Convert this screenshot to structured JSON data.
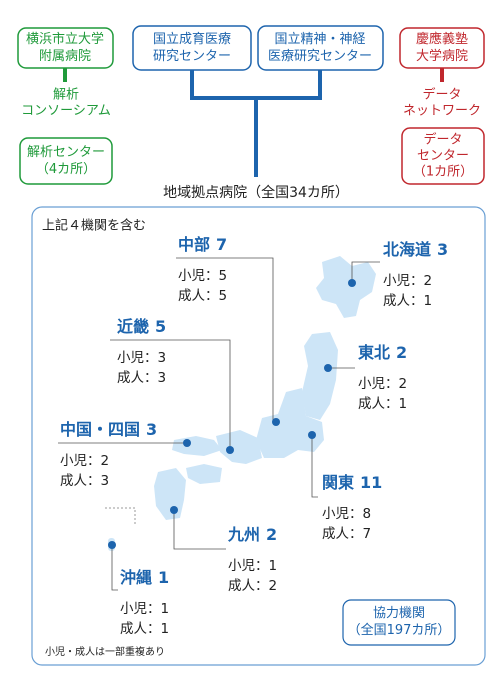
{
  "institutions": [
    {
      "lines": [
        "横浜市立大学",
        "附属病院"
      ]
    },
    {
      "lines": [
        "国立成育医療",
        "研究センター"
      ]
    },
    {
      "lines": [
        "国立精神・神経",
        "医療研究センター"
      ]
    },
    {
      "lines": [
        "慶應義塾",
        "大学病院"
      ]
    }
  ],
  "analysis": {
    "consortium": [
      "解析",
      "コンソーシアム"
    ],
    "center": [
      "解析センター",
      "（4カ所）"
    ]
  },
  "data_network": {
    "label": [
      "データ",
      "ネットワーク"
    ],
    "center": [
      "データ",
      "センター",
      "（1カ所）"
    ]
  },
  "regional_hospitals": "地域拠点病院（全国34カ所）",
  "map": {
    "note": "上記４機関を含む",
    "child_label": "小児：",
    "adult_label": "成人：",
    "regions": [
      {
        "name": "中部",
        "count": 7,
        "child": 5,
        "adult": 5
      },
      {
        "name": "北海道",
        "count": 3,
        "child": 2,
        "adult": 1
      },
      {
        "name": "近畿",
        "count": 5,
        "child": 3,
        "adult": 3
      },
      {
        "name": "東北",
        "count": 2,
        "child": 2,
        "adult": 1
      },
      {
        "name": "中国・四国",
        "count": 3,
        "child": 2,
        "adult": 3
      },
      {
        "name": "関東",
        "count": 11,
        "child": 8,
        "adult": 7
      },
      {
        "name": "九州",
        "count": 2,
        "child": 1,
        "adult": 2
      },
      {
        "name": "沖縄",
        "count": 1,
        "child": 1,
        "adult": 1
      }
    ],
    "cooperating": [
      "協力機関",
      "（全国197カ所）"
    ],
    "footnote": "小児・成人は一部重複あり"
  }
}
